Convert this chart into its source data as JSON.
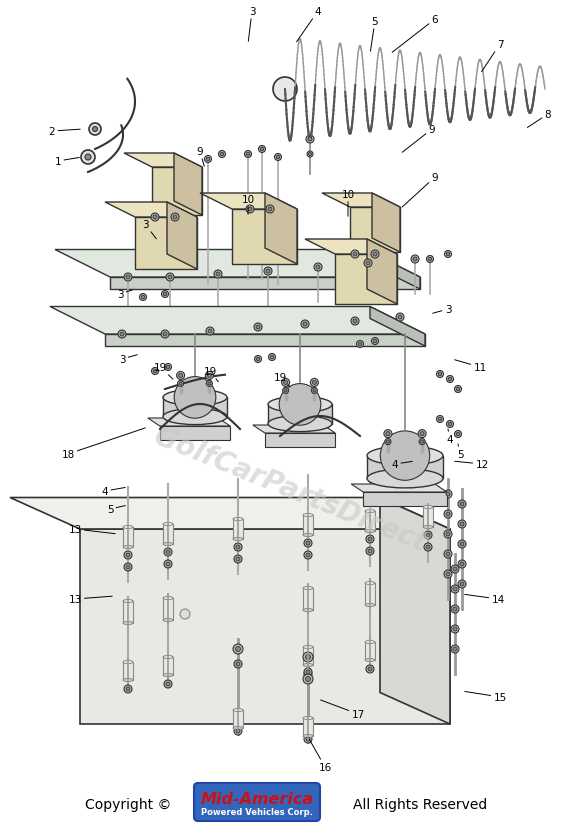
{
  "bg_color": "#ffffff",
  "line_color": "#555555",
  "dark_line": "#333333",
  "copyright_text": "Copyright ©",
  "brand_text": "Mid-America",
  "brand_subtext": "Powered Vehicles Corp.",
  "rights_text": "All Rights Reserved",
  "brand_color_red": "#cc1111",
  "brand_color_blue": "#3366bb",
  "brand_bg": "#3366bb",
  "watermark_text": "GolfCarPartsDirect",
  "watermark_color": "#c8c8c8",
  "coil_color": "#888888",
  "block_face": "#e0d8b0",
  "block_top": "#ece4c0",
  "block_side": "#ccc0a0",
  "plate_top": "#e8e8e0",
  "plate_front": "#d8d8d0",
  "plate_side": "#c8c8c0",
  "solenoid_body": "#d8d8d8",
  "solenoid_inner": "#aaaaaa",
  "insulator_color": "#dddddd",
  "screw_color": "#999999"
}
